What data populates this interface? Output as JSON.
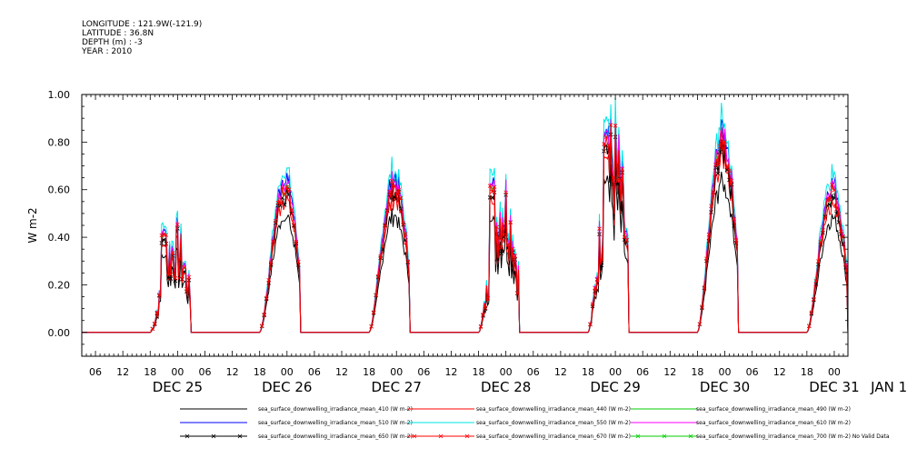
{
  "header": {
    "longitude": "LONGITUDE : 121.9W(-121.9)",
    "latitude": "LATITUDE : 36.8N",
    "depth": "DEPTH (m) : -3",
    "year": "YEAR : 2010"
  },
  "chart_data": {
    "type": "line",
    "title": "",
    "ylabel": "W m-2",
    "ylim": [
      -0.1,
      1.0
    ],
    "xlim_hours": [
      0,
      168
    ],
    "yticks": [
      "0.00",
      "0.20",
      "0.40",
      "0.60",
      "0.80",
      "1.00"
    ],
    "ytick_values": [
      0.0,
      0.2,
      0.4,
      0.6,
      0.8,
      1.0
    ],
    "hour_ticks": [
      "06",
      "12",
      "18",
      "00"
    ],
    "day_labels": [
      "DEC 25",
      "DEC 26",
      "DEC 27",
      "DEC 28",
      "DEC 29",
      "DEC 30",
      "DEC 31",
      "JAN 1"
    ],
    "x_start": "2010-12-25 03:00",
    "daylight_hours": [
      15,
      26
    ],
    "day_peaks": [
      {
        "day": "DEC 25",
        "peak_hour": 18,
        "peak": 0.4,
        "profile": "spiky"
      },
      {
        "day": "DEC 26",
        "peak_hour": 20,
        "peak": 0.62,
        "profile": "broad"
      },
      {
        "day": "DEC 27",
        "peak_hour": 20,
        "peak": 0.62,
        "profile": "broad"
      },
      {
        "day": "DEC 28",
        "peak_hour": 18,
        "peak": 0.6,
        "profile": "spiky"
      },
      {
        "day": "DEC 29",
        "peak_hour": 19,
        "peak": 0.8,
        "profile": "spiky"
      },
      {
        "day": "DEC 30",
        "peak_hour": 19,
        "peak": 0.8,
        "profile": "broad"
      },
      {
        "day": "DEC 31",
        "peak_hour": 19,
        "peak": 0.6,
        "profile": "broad"
      }
    ],
    "series": [
      {
        "name": "sea_surface_downwelling_irradiance_mean_410 (W m-2)",
        "color": "#000000",
        "scale": 0.8,
        "marker": "none"
      },
      {
        "name": "sea_surface_downwelling_irradiance_mean_440 (W m-2)",
        "color": "#ff0000",
        "scale": 0.92,
        "marker": "none"
      },
      {
        "name": "sea_surface_downwelling_irradiance_mean_490 (W m-2)",
        "color": "#00cc00",
        "scale": 1.02,
        "marker": "none"
      },
      {
        "name": "sea_surface_downwelling_irradiance_mean_510 (W m-2)",
        "color": "#0000ff",
        "scale": 1.06,
        "marker": "none"
      },
      {
        "name": "sea_surface_downwelling_irradiance_mean_550 (W m-2)",
        "color": "#00e5e5",
        "scale": 1.12,
        "marker": "none"
      },
      {
        "name": "sea_surface_downwelling_irradiance_mean_610 (W m-2)",
        "color": "#ff00ff",
        "scale": 1.04,
        "marker": "none"
      },
      {
        "name": "sea_surface_downwelling_irradiance_mean_650 (W m-2)",
        "color": "#000000",
        "scale": 0.96,
        "marker": "x"
      },
      {
        "name": "sea_surface_downwelling_irradiance_mean_670 (W m-2)",
        "color": "#ff0000",
        "scale": 1.0,
        "marker": "x"
      },
      {
        "name": "sea_surface_downwelling_irradiance_mean_700 (W m-2) No Valid Data",
        "color": "#00cc00",
        "scale": 0,
        "marker": "x"
      }
    ]
  }
}
